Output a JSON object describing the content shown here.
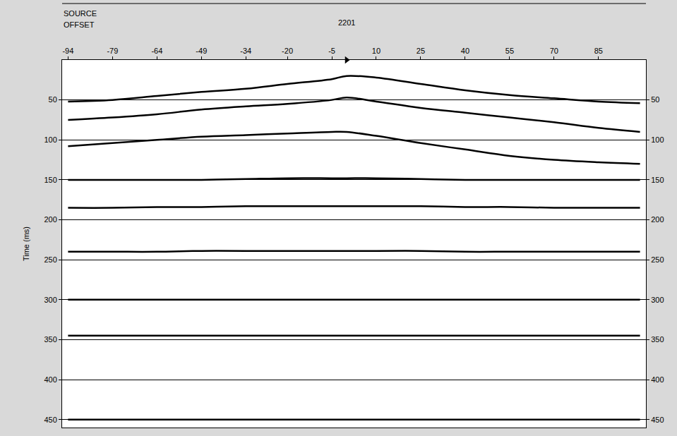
{
  "chart_data": {
    "type": "wiggle",
    "header": "SOURCE",
    "title": "2201",
    "xlabel": "OFFSET",
    "ylabel": "Time (ms)",
    "source_offset": 0,
    "x": [
      -94,
      -79,
      -64,
      -49,
      -34,
      -20,
      -5,
      0,
      10,
      25,
      40,
      55,
      70,
      85,
      99
    ],
    "series": [
      {
        "color": "#000000",
        "values": [
          52,
          50,
          45,
          40,
          36,
          30,
          24,
          20,
          22,
          30,
          38,
          44,
          48,
          52,
          54
        ]
      },
      {
        "color": "#000000",
        "values": [
          75,
          72,
          68,
          62,
          58,
          55,
          50,
          47,
          52,
          60,
          66,
          72,
          78,
          85,
          90
        ]
      },
      {
        "color": "#000000",
        "values": [
          108,
          104,
          100,
          96,
          94,
          92,
          90,
          90,
          95,
          104,
          112,
          120,
          125,
          128,
          130
        ]
      },
      {
        "color": "#000000",
        "values": [
          150,
          150,
          150,
          150,
          149,
          148,
          148,
          148,
          148,
          149,
          150,
          150,
          150,
          150,
          150
        ]
      },
      {
        "color": "#000000",
        "values": [
          185,
          185,
          184,
          184,
          183,
          183,
          183,
          183,
          183,
          183,
          184,
          184,
          185,
          185,
          185
        ]
      },
      {
        "color": "#000000",
        "values": [
          240,
          240,
          240,
          239,
          239,
          239,
          239,
          239,
          239,
          239,
          240,
          240,
          240,
          240,
          240
        ]
      },
      {
        "color": "#000000",
        "values": [
          300,
          300,
          300,
          300,
          300,
          300,
          300,
          300,
          300,
          300,
          300,
          300,
          300,
          300,
          300
        ]
      },
      {
        "color": "#000000",
        "values": [
          345,
          345,
          345,
          345,
          345,
          345,
          345,
          345,
          345,
          345,
          345,
          345,
          345,
          345,
          345
        ]
      },
      {
        "color": "#000000",
        "values": [
          450,
          450,
          450,
          450,
          450,
          450,
          450,
          450,
          450,
          450,
          450,
          450,
          450,
          450,
          450
        ]
      }
    ],
    "xlim": [
      -96,
      101
    ],
    "xticks": [
      -94,
      -79,
      -64,
      -49,
      -34,
      -20,
      -5,
      10,
      25,
      40,
      55,
      70,
      85
    ],
    "ylim": [
      0,
      460
    ],
    "yticks": [
      50,
      100,
      150,
      200,
      250,
      300,
      350,
      400,
      450
    ],
    "grid": true
  }
}
